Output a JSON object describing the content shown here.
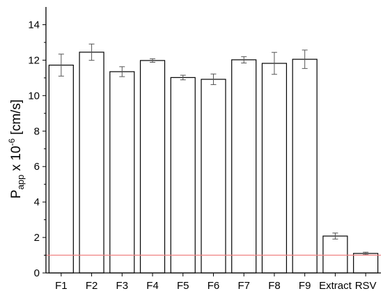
{
  "chart_data": {
    "type": "bar",
    "categories": [
      "F1",
      "F2",
      "F3",
      "F4",
      "F5",
      "F6",
      "F7",
      "F8",
      "F9",
      "Extract",
      "RSV"
    ],
    "series": [
      {
        "values": [
          11.72,
          12.45,
          11.35,
          11.98,
          11.02,
          10.92,
          12.02,
          11.82,
          12.05,
          2.08,
          1.1
        ],
        "error": [
          0.62,
          0.46,
          0.28,
          0.1,
          0.13,
          0.3,
          0.18,
          0.62,
          0.52,
          0.17,
          0.07
        ]
      }
    ],
    "reference_line": {
      "y": 1.0,
      "color": "#f08080"
    },
    "ylabel": {
      "main": "P",
      "sub": "app",
      "mid": " x 10",
      "sup": "-6",
      "unit": " [cm/s]"
    },
    "xlabel": "",
    "ylim": [
      0,
      15
    ],
    "yticks": [
      0,
      2,
      4,
      6,
      8,
      10,
      12,
      14
    ],
    "grid": false,
    "legend": "none",
    "colors": {
      "bar_fill": "#ffffff",
      "bar_stroke": "#000000",
      "error_bar": "#555555",
      "axis": "#000000"
    }
  }
}
